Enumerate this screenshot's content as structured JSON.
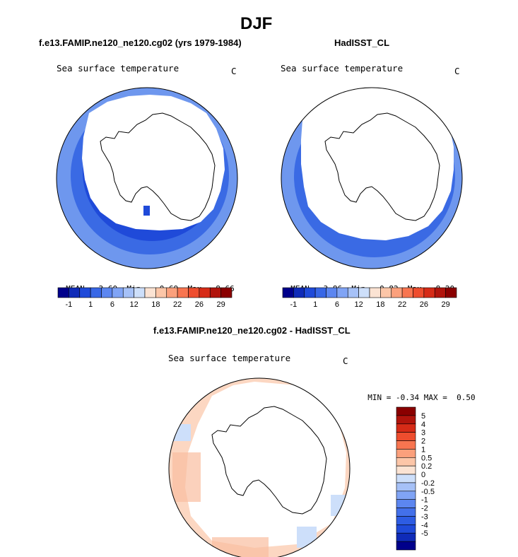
{
  "figure_title": "DJF",
  "panels": [
    {
      "header": "f.e13.FAMIP.ne120_ne120.cg02 (yrs 1979-1984)",
      "label": "Sea surface temperature",
      "units": "C",
      "stats": {
        "mean_label": "MEAN=",
        "mean": "2.60",
        "min_label": "Min=",
        "min": "-0.69",
        "max_label": "Max=",
        "max": "8.66"
      }
    },
    {
      "header": "HadISST_CL",
      "label": "Sea surface temperature",
      "units": "C",
      "stats": {
        "mean_label": "MEAN=",
        "mean": "3.86",
        "min_label": "Min=",
        "min": "0.82",
        "max_label": "Max=",
        "max": "8.20"
      }
    },
    {
      "header": "f.e13.FAMIP.ne120_ne120.cg02 - HadISST_CL",
      "label": "Sea surface temperature",
      "units": "C",
      "stats": {
        "min_label": "MIN =",
        "min": "-0.34",
        "max_label": "MAX =",
        "max": "0.50"
      }
    }
  ],
  "colorbar_abs": {
    "colors": [
      "#00008b",
      "#0f2bb8",
      "#1f4ad9",
      "#3867e6",
      "#5c86f0",
      "#80a4f5",
      "#a6c1f7",
      "#cddffa",
      "#fbe3d3",
      "#fcc6a8",
      "#fba07c",
      "#f87550",
      "#ee4d2e",
      "#d62b17",
      "#b1140c",
      "#8a0000"
    ],
    "tick_labels": [
      "-1",
      "1",
      "6",
      "12",
      "18",
      "22",
      "26",
      "29"
    ]
  },
  "colorbar_diff": {
    "colors": [
      "#00008b",
      "#0f2bb8",
      "#1f4ad9",
      "#2d5ce3",
      "#4370ea",
      "#5c86f0",
      "#80a4f5",
      "#a6c1f7",
      "#cddffa",
      "#fbe3d3",
      "#fcc6a8",
      "#fba07c",
      "#f87550",
      "#ee4d2e",
      "#d62b17",
      "#b1140c",
      "#8a0000"
    ],
    "tick_labels": [
      "5",
      "4",
      "3",
      "2",
      "1",
      "0.5",
      "0.2",
      "0",
      "-0.2",
      "-0.5",
      "-1",
      "-2",
      "-3",
      "-4",
      "-5"
    ]
  },
  "map_fill": {
    "model_outer": "#6e97ee",
    "model_ring": "#3a6ae4",
    "model_inner": "#1f4ad9",
    "obs_outer": "#6e97ee",
    "obs_ring": "#3a6ae4",
    "obs_inner": "#1f4ad9",
    "diff_pos": "#fcd7c2",
    "diff_pos2": "#f9bea0",
    "diff_neg": "#cddffa"
  }
}
